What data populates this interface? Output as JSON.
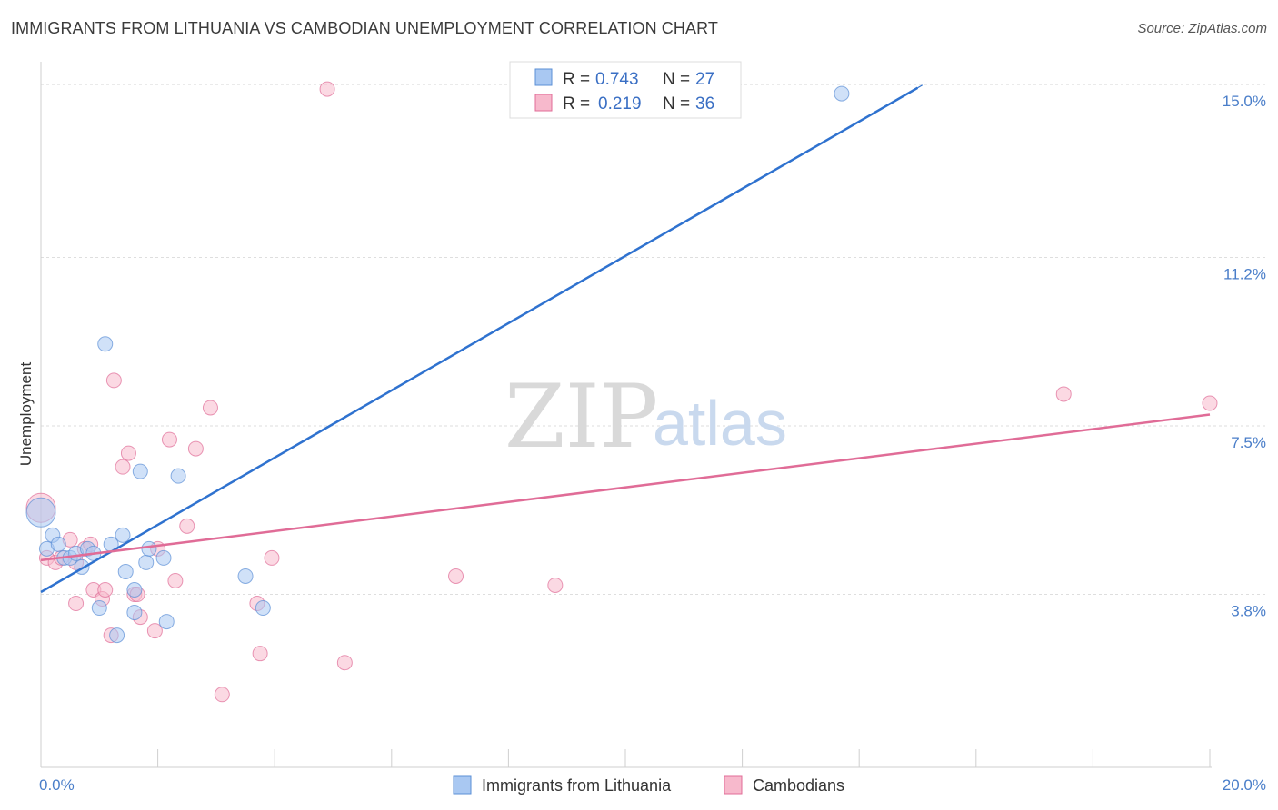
{
  "header": {
    "title": "IMMIGRANTS FROM LITHUANIA VS CAMBODIAN UNEMPLOYMENT CORRELATION CHART",
    "source": "Source: ZipAtlas.com"
  },
  "watermark": {
    "zip": "ZIP",
    "atlas": "atlas"
  },
  "legend": {
    "rows": [
      {
        "r_label": "R =",
        "r_value": "0.743",
        "n_label": "N =",
        "n_value": "27",
        "color": "#a9c8f2"
      },
      {
        "r_label": "R =",
        "r_value": "0.219",
        "n_label": "N =",
        "n_value": "36",
        "color": "#f7b9cc"
      }
    ]
  },
  "bottom_legend": [
    {
      "label": "Immigrants from Lithuania",
      "color": "#a9c8f2"
    },
    {
      "label": "Cambodians",
      "color": "#f7b9cc"
    }
  ],
  "chart_data": {
    "type": "scatter",
    "title": "IMMIGRANTS FROM LITHUANIA VS CAMBODIAN UNEMPLOYMENT CORRELATION CHART",
    "xlabel": "",
    "ylabel": "Unemployment",
    "xlim": [
      0,
      20
    ],
    "ylim": [
      0,
      15.5
    ],
    "x_tick_labels": [
      {
        "value": 0,
        "label": "0.0%"
      },
      {
        "value": 20,
        "label": "20.0%"
      }
    ],
    "y_tick_labels": [
      {
        "value": 3.8,
        "label": "3.8%"
      },
      {
        "value": 7.5,
        "label": "7.5%"
      },
      {
        "value": 11.2,
        "label": "11.2%"
      },
      {
        "value": 15.0,
        "label": "15.0%"
      }
    ],
    "grid": true,
    "series": [
      {
        "name": "Immigrants from Lithuania",
        "color": "#5b8fd6",
        "fill": "#a9c8f2",
        "points": [
          [
            0.0,
            5.6
          ],
          [
            0.1,
            4.8
          ],
          [
            0.2,
            5.1
          ],
          [
            0.3,
            4.9
          ],
          [
            0.4,
            4.6
          ],
          [
            0.5,
            4.6
          ],
          [
            0.6,
            4.7
          ],
          [
            0.7,
            4.4
          ],
          [
            0.8,
            4.8
          ],
          [
            0.9,
            4.7
          ],
          [
            1.0,
            3.5
          ],
          [
            1.1,
            9.3
          ],
          [
            1.2,
            4.9
          ],
          [
            1.3,
            2.9
          ],
          [
            1.4,
            5.1
          ],
          [
            1.45,
            4.3
          ],
          [
            1.6,
            3.9
          ],
          [
            1.6,
            3.4
          ],
          [
            1.7,
            6.5
          ],
          [
            1.8,
            4.5
          ],
          [
            1.85,
            4.8
          ],
          [
            2.1,
            4.6
          ],
          [
            2.15,
            3.2
          ],
          [
            2.35,
            6.4
          ],
          [
            3.5,
            4.2
          ],
          [
            3.8,
            3.5
          ],
          [
            13.7,
            14.8
          ]
        ],
        "trend": {
          "x0": 0,
          "y0": 3.85,
          "x1": 15.1,
          "y1": 15.0,
          "solid_until": 15.0
        }
      },
      {
        "name": "Cambodians",
        "color": "#e06c97",
        "fill": "#f7b9cc",
        "points": [
          [
            0.0,
            5.7
          ],
          [
            0.1,
            4.6
          ],
          [
            0.25,
            4.5
          ],
          [
            0.35,
            4.6
          ],
          [
            0.5,
            5.0
          ],
          [
            0.6,
            4.5
          ],
          [
            0.6,
            3.6
          ],
          [
            0.75,
            4.8
          ],
          [
            0.85,
            4.9
          ],
          [
            0.9,
            3.9
          ],
          [
            1.05,
            3.7
          ],
          [
            1.1,
            3.9
          ],
          [
            1.2,
            2.9
          ],
          [
            1.25,
            8.5
          ],
          [
            1.4,
            6.6
          ],
          [
            1.5,
            6.9
          ],
          [
            1.6,
            3.8
          ],
          [
            1.65,
            3.8
          ],
          [
            1.7,
            3.3
          ],
          [
            1.95,
            3.0
          ],
          [
            2.0,
            4.8
          ],
          [
            2.2,
            7.2
          ],
          [
            2.3,
            4.1
          ],
          [
            2.5,
            5.3
          ],
          [
            2.65,
            7.0
          ],
          [
            2.9,
            7.9
          ],
          [
            3.1,
            1.6
          ],
          [
            3.7,
            3.6
          ],
          [
            3.75,
            2.5
          ],
          [
            3.95,
            4.6
          ],
          [
            4.9,
            14.9
          ],
          [
            5.2,
            2.3
          ],
          [
            7.1,
            4.2
          ],
          [
            8.8,
            4.0
          ],
          [
            17.5,
            8.2
          ],
          [
            20.0,
            8.0
          ]
        ],
        "trend": {
          "x0": 0,
          "y0": 4.55,
          "x1": 20,
          "y1": 7.75
        }
      }
    ]
  }
}
